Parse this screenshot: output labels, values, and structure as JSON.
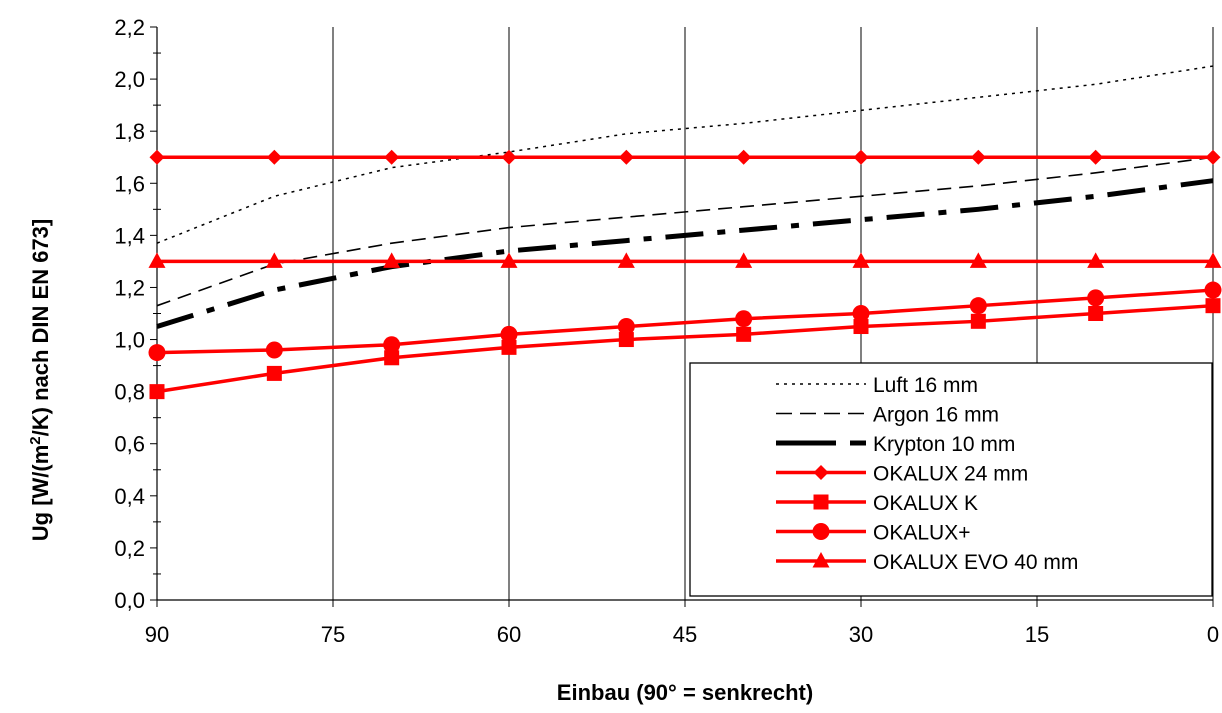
{
  "chart_data": {
    "type": "line",
    "xlabel": "Einbau (90° = senkrecht)",
    "ylabel_parts": {
      "before": "Ug [W/(m",
      "superscript": "2",
      "after": "/K) nach DIN EN 673]"
    },
    "xlim": [
      90,
      0
    ],
    "ylim": [
      0,
      2.2
    ],
    "xticks": [
      90,
      75,
      60,
      45,
      30,
      15,
      0
    ],
    "xtick_labels": [
      "90",
      "75",
      "60",
      "45",
      "30",
      "15",
      "0"
    ],
    "yticks": [
      0,
      0.2,
      0.4,
      0.6,
      0.8,
      1.0,
      1.2,
      1.4,
      1.6,
      1.8,
      2.0,
      2.2
    ],
    "ytick_labels": [
      "0,0",
      "0,2",
      "0,4",
      "0,6",
      "0,8",
      "1,0",
      "1,2",
      "1,4",
      "1,6",
      "1,8",
      "2,0",
      "2,2"
    ],
    "grid": "vertical",
    "legend_position": "bottom-right",
    "series": [
      {
        "name": "Luft 16 mm",
        "color": "#000000",
        "style": "dotted",
        "marker": "none",
        "x": [
          90,
          80,
          70,
          60,
          50,
          40,
          30,
          20,
          10,
          0
        ],
        "y": [
          1.37,
          1.55,
          1.66,
          1.72,
          1.79,
          1.83,
          1.88,
          1.93,
          1.98,
          2.05
        ]
      },
      {
        "name": "Argon 16 mm",
        "color": "#000000",
        "style": "dashed",
        "marker": "none",
        "x": [
          90,
          80,
          70,
          60,
          50,
          40,
          30,
          20,
          10,
          0
        ],
        "y": [
          1.13,
          1.29,
          1.37,
          1.43,
          1.47,
          1.51,
          1.55,
          1.59,
          1.64,
          1.7
        ]
      },
      {
        "name": "Krypton 10 mm",
        "color": "#000000",
        "style": "dashdot-thick",
        "marker": "none",
        "x": [
          90,
          80,
          70,
          60,
          50,
          40,
          30,
          20,
          10,
          0
        ],
        "y": [
          1.05,
          1.19,
          1.28,
          1.34,
          1.38,
          1.42,
          1.46,
          1.5,
          1.55,
          1.61
        ]
      },
      {
        "name": "OKALUX 24 mm",
        "color": "#ff0000",
        "style": "solid",
        "marker": "diamond",
        "x": [
          90,
          80,
          70,
          60,
          50,
          40,
          30,
          20,
          10,
          0
        ],
        "y": [
          1.7,
          1.7,
          1.7,
          1.7,
          1.7,
          1.7,
          1.7,
          1.7,
          1.7,
          1.7
        ]
      },
      {
        "name": "OKALUX K",
        "color": "#ff0000",
        "style": "solid",
        "marker": "square",
        "x": [
          90,
          80,
          70,
          60,
          50,
          40,
          30,
          20,
          10,
          0
        ],
        "y": [
          0.8,
          0.87,
          0.93,
          0.97,
          1.0,
          1.02,
          1.05,
          1.07,
          1.1,
          1.13
        ]
      },
      {
        "name": "OKALUX+",
        "color": "#ff0000",
        "style": "solid",
        "marker": "circle",
        "x": [
          90,
          80,
          70,
          60,
          50,
          40,
          30,
          20,
          10,
          0
        ],
        "y": [
          0.95,
          0.96,
          0.98,
          1.02,
          1.05,
          1.08,
          1.1,
          1.13,
          1.16,
          1.19
        ]
      },
      {
        "name": "OKALUX EVO 40 mm",
        "color": "#ff0000",
        "style": "solid",
        "marker": "triangle",
        "x": [
          90,
          80,
          70,
          60,
          50,
          40,
          30,
          20,
          10,
          0
        ],
        "y": [
          1.3,
          1.3,
          1.3,
          1.3,
          1.3,
          1.3,
          1.3,
          1.3,
          1.3,
          1.3
        ]
      }
    ]
  }
}
